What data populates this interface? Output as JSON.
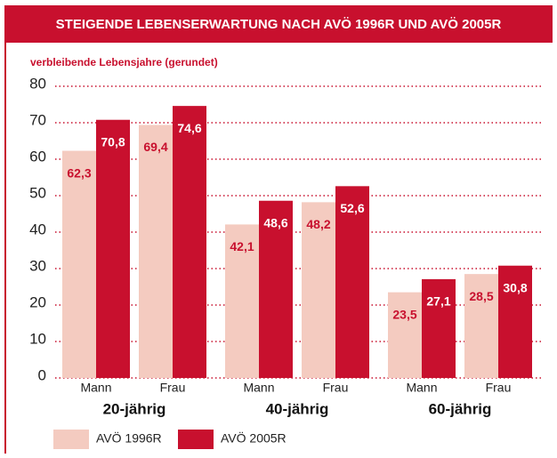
{
  "chart_data": {
    "type": "bar",
    "title": "STEIGENDE LEBENSERWARTUNG NACH AVÖ 1996R UND AVÖ 2005R",
    "subtitle": "verbleibende Lebensjahre (gerundet)",
    "groups": [
      "20-jährig",
      "40-jährig",
      "60-jährig"
    ],
    "categories": [
      "Mann",
      "Frau",
      "Mann",
      "Frau",
      "Mann",
      "Frau"
    ],
    "series": [
      {
        "name": "AVÖ 1996R",
        "color": "#f4cbc0",
        "values": [
          62.3,
          69.4,
          42.1,
          48.2,
          23.5,
          28.5
        ],
        "value_labels": [
          "62,3",
          "69,4",
          "42,1",
          "48,2",
          "23,5",
          "28,5"
        ]
      },
      {
        "name": "AVÖ 2005R",
        "color": "#c8102e",
        "values": [
          70.8,
          74.6,
          48.6,
          52.6,
          27.1,
          30.8
        ],
        "value_labels": [
          "70,8",
          "74,6",
          "48,6",
          "52,6",
          "27,1",
          "30,8"
        ]
      }
    ],
    "ylim": [
      0,
      80
    ],
    "yticks": [
      0,
      10,
      20,
      30,
      40,
      50,
      60,
      70,
      80
    ],
    "grid": true
  }
}
